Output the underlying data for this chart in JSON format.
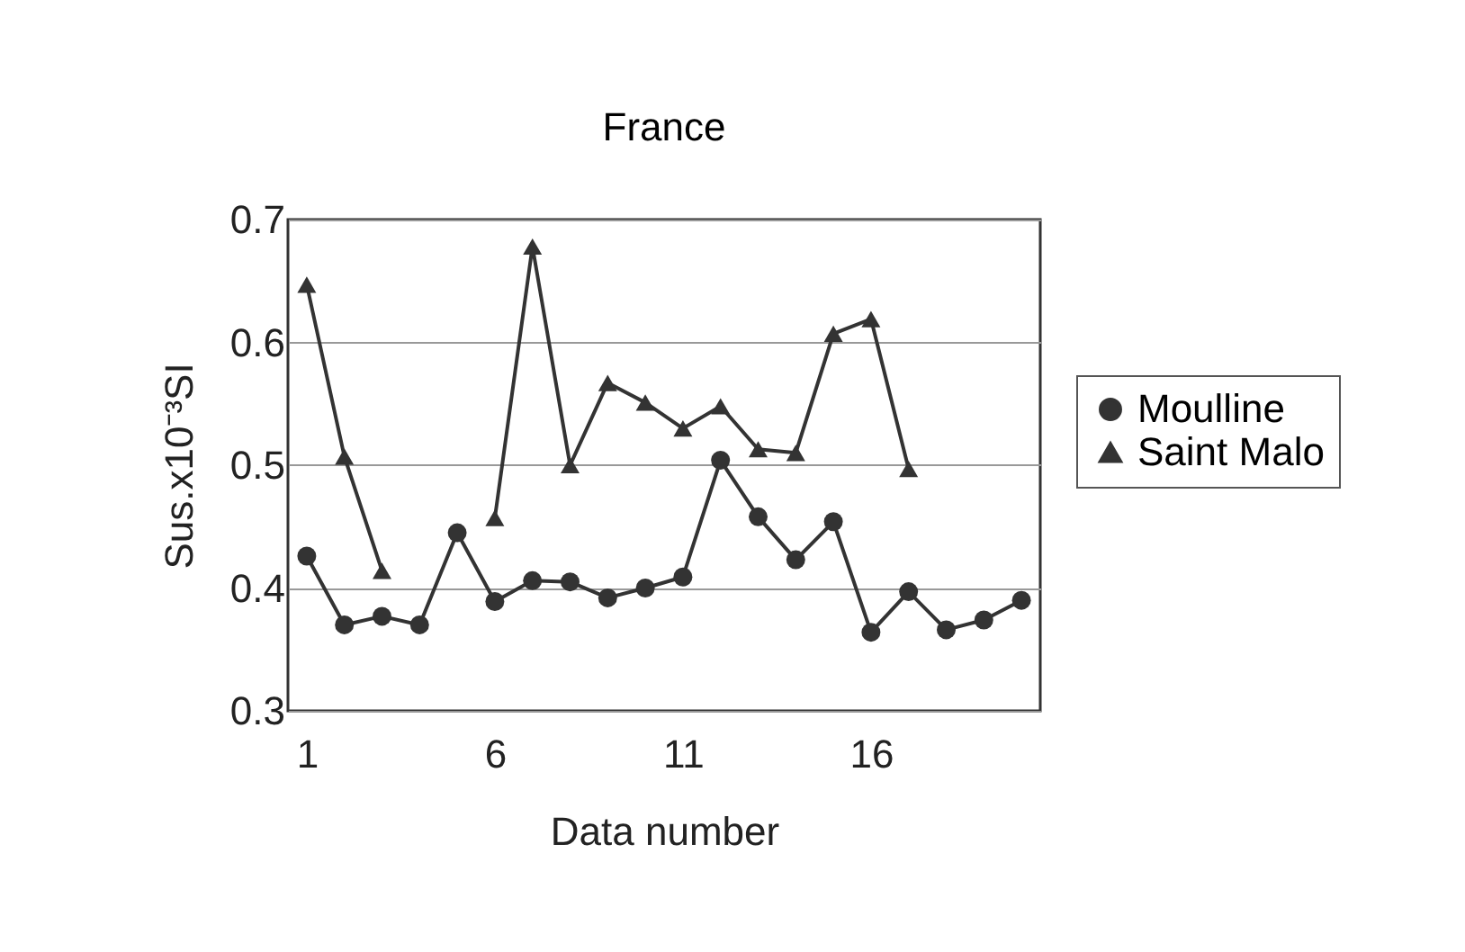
{
  "chart_data": {
    "type": "line",
    "title": "France",
    "xlabel": "Data number",
    "ylabel": "Sus.x10⁻³SI",
    "x": [
      1,
      2,
      3,
      4,
      5,
      6,
      7,
      8,
      9,
      10,
      11,
      12,
      13,
      14,
      15,
      16,
      17,
      18,
      19,
      20
    ],
    "series": [
      {
        "name": "Moulline",
        "color": "#333333",
        "marker": "circle",
        "values": [
          0.426,
          0.37,
          0.377,
          0.37,
          0.445,
          0.389,
          0.406,
          0.405,
          0.392,
          0.4,
          0.409,
          0.504,
          0.458,
          0.423,
          0.454,
          0.364,
          0.397,
          0.366,
          0.374,
          0.39
        ]
      },
      {
        "name": "Saint Malo",
        "color": "#333333",
        "marker": "triangle",
        "values": [
          0.647,
          0.507,
          0.414,
          null,
          null,
          0.457,
          0.678,
          0.5,
          0.567,
          0.551,
          0.53,
          0.548,
          0.513,
          0.51,
          0.607,
          0.619,
          0.497,
          null,
          null,
          null
        ]
      }
    ],
    "xlim": [
      0.5,
      20.5
    ],
    "xticks": [
      1,
      6,
      11,
      16
    ],
    "ylim": [
      0.3,
      0.7
    ],
    "yticks": [
      0.3,
      0.4,
      0.5,
      0.6,
      0.7
    ],
    "grid": "y",
    "legend": "right",
    "line_style": "solid"
  }
}
